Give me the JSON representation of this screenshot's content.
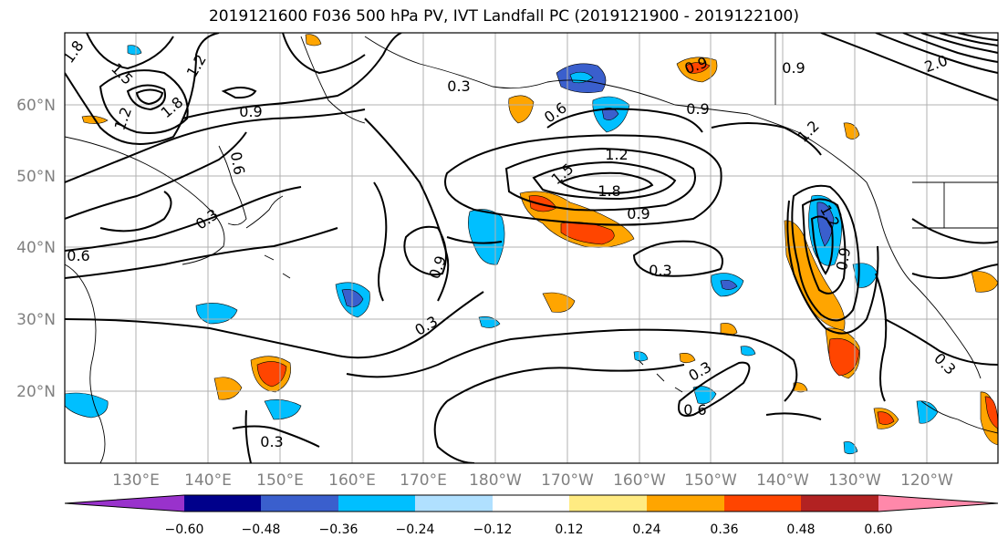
{
  "title": "2019121600 F036 500 hPa PV, IVT Landfall PC (2019121900 - 2019122100)",
  "lat_labels": [
    "60°N",
    "50°N",
    "40°N",
    "30°N",
    "20°N"
  ],
  "lon_labels": [
    "130°E",
    "140°E",
    "150°E",
    "160°E",
    "170°E",
    "180°W",
    "170°W",
    "160°W",
    "150°W",
    "140°W",
    "130°W",
    "120°W"
  ],
  "contour_labels": [
    "1.8",
    "1.5",
    "1.2",
    "1.8",
    "1.2",
    "0.9",
    "0.6",
    "0.3",
    "0.9",
    "0.6",
    "0.9",
    "1.2",
    "1.5",
    "1.8",
    "0.9",
    "1.2",
    "0.9",
    "0.3",
    "0.9",
    "0.3",
    "0.3",
    "0.6",
    "0.3",
    "1.2",
    "0.9",
    "0.3",
    "0.3",
    "0.6",
    "2.0"
  ],
  "colorbar": {
    "colors": [
      "#9932cc",
      "#00008b",
      "#3a5fcd",
      "#00bfff",
      "#b0e0ff",
      "#ffffff",
      "#ffeb82",
      "#ffa500",
      "#ff4500",
      "#b22222",
      "#ff88aa"
    ],
    "ticks": [
      "−0.60",
      "−0.48",
      "−0.36",
      "−0.24",
      "−0.12",
      "0.12",
      "0.24",
      "0.36",
      "0.48",
      "0.60"
    ]
  }
}
